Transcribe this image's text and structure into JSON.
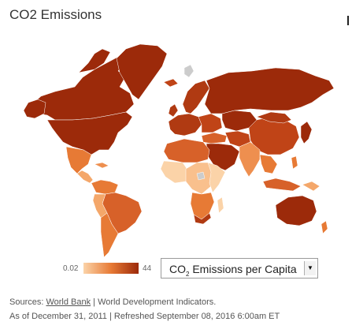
{
  "title": "CO2 Emissions",
  "legend": {
    "min": "0.02",
    "max": "44",
    "color_low": "#fbd3a8",
    "color_high": "#9c2a0a"
  },
  "selector": {
    "prefix": "CO",
    "subscript": "2",
    "suffix": " Emissions per Capita",
    "arrow_icon": "dropdown-arrow-icon"
  },
  "footer": {
    "sources_label": "Sources: ",
    "source_link": "World Bank",
    "source_rest": " | World Development Indicators.",
    "as_of": "As of December 31, 2011 | Refreshed September 08, 2016 6:00am ET"
  },
  "colors": {
    "no_data": "#cccccc",
    "ocean": "#ffffff"
  }
}
